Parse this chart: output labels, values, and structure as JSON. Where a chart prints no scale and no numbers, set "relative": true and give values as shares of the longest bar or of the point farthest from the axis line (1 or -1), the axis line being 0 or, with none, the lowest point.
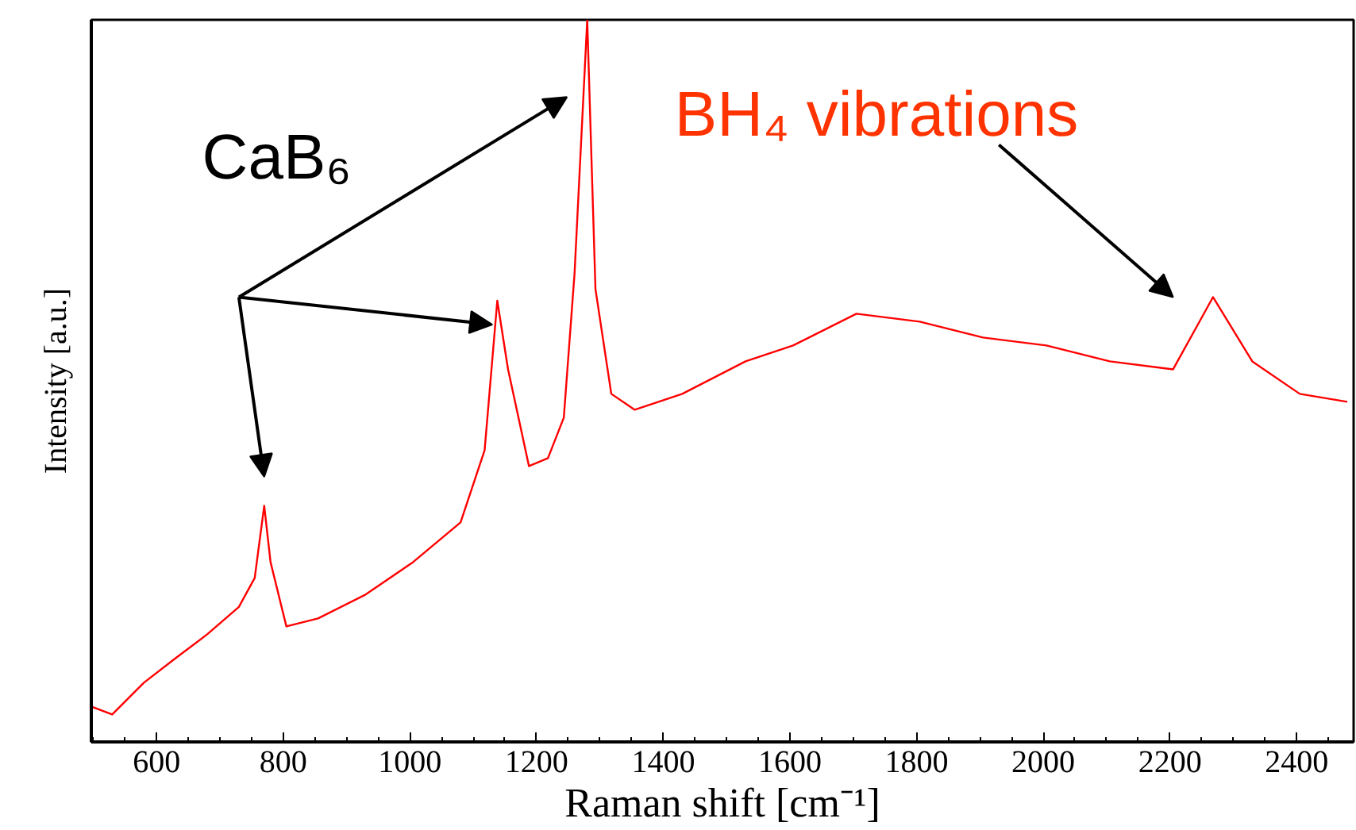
{
  "chart_data": {
    "type": "line",
    "relative": true,
    "xlabel": "Raman shift [cm⁻¹]",
    "ylabel": "Intensity [a.u.]",
    "xlim": [
      497,
      2490
    ],
    "xticks": [
      600,
      800,
      1000,
      1200,
      1400,
      1600,
      1800,
      2000,
      2200,
      2400
    ],
    "x": [
      497,
      530,
      580,
      630,
      680,
      730,
      755,
      770,
      780,
      805,
      855,
      930,
      1005,
      1080,
      1118,
      1138,
      1155,
      1188,
      1218,
      1243,
      1260,
      1280,
      1293,
      1318,
      1355,
      1430,
      1530,
      1605,
      1705,
      1805,
      1905,
      2005,
      2105,
      2205,
      2268,
      2330,
      2405,
      2480
    ],
    "series": [
      {
        "color": "#ff0000",
        "values": [
          0.049,
          0.038,
          0.082,
          0.116,
          0.149,
          0.187,
          0.227,
          0.327,
          0.249,
          0.16,
          0.171,
          0.204,
          0.249,
          0.304,
          0.404,
          0.611,
          0.516,
          0.382,
          0.393,
          0.449,
          0.649,
          1.0,
          0.627,
          0.482,
          0.46,
          0.482,
          0.527,
          0.549,
          0.593,
          0.582,
          0.56,
          0.549,
          0.527,
          0.516,
          0.616,
          0.527,
          0.482,
          0.471
        ]
      }
    ],
    "annotations": [
      "CaB₆",
      "BH₄ vibrations"
    ],
    "grid": false,
    "marker": "none",
    "line_style": "solid"
  }
}
